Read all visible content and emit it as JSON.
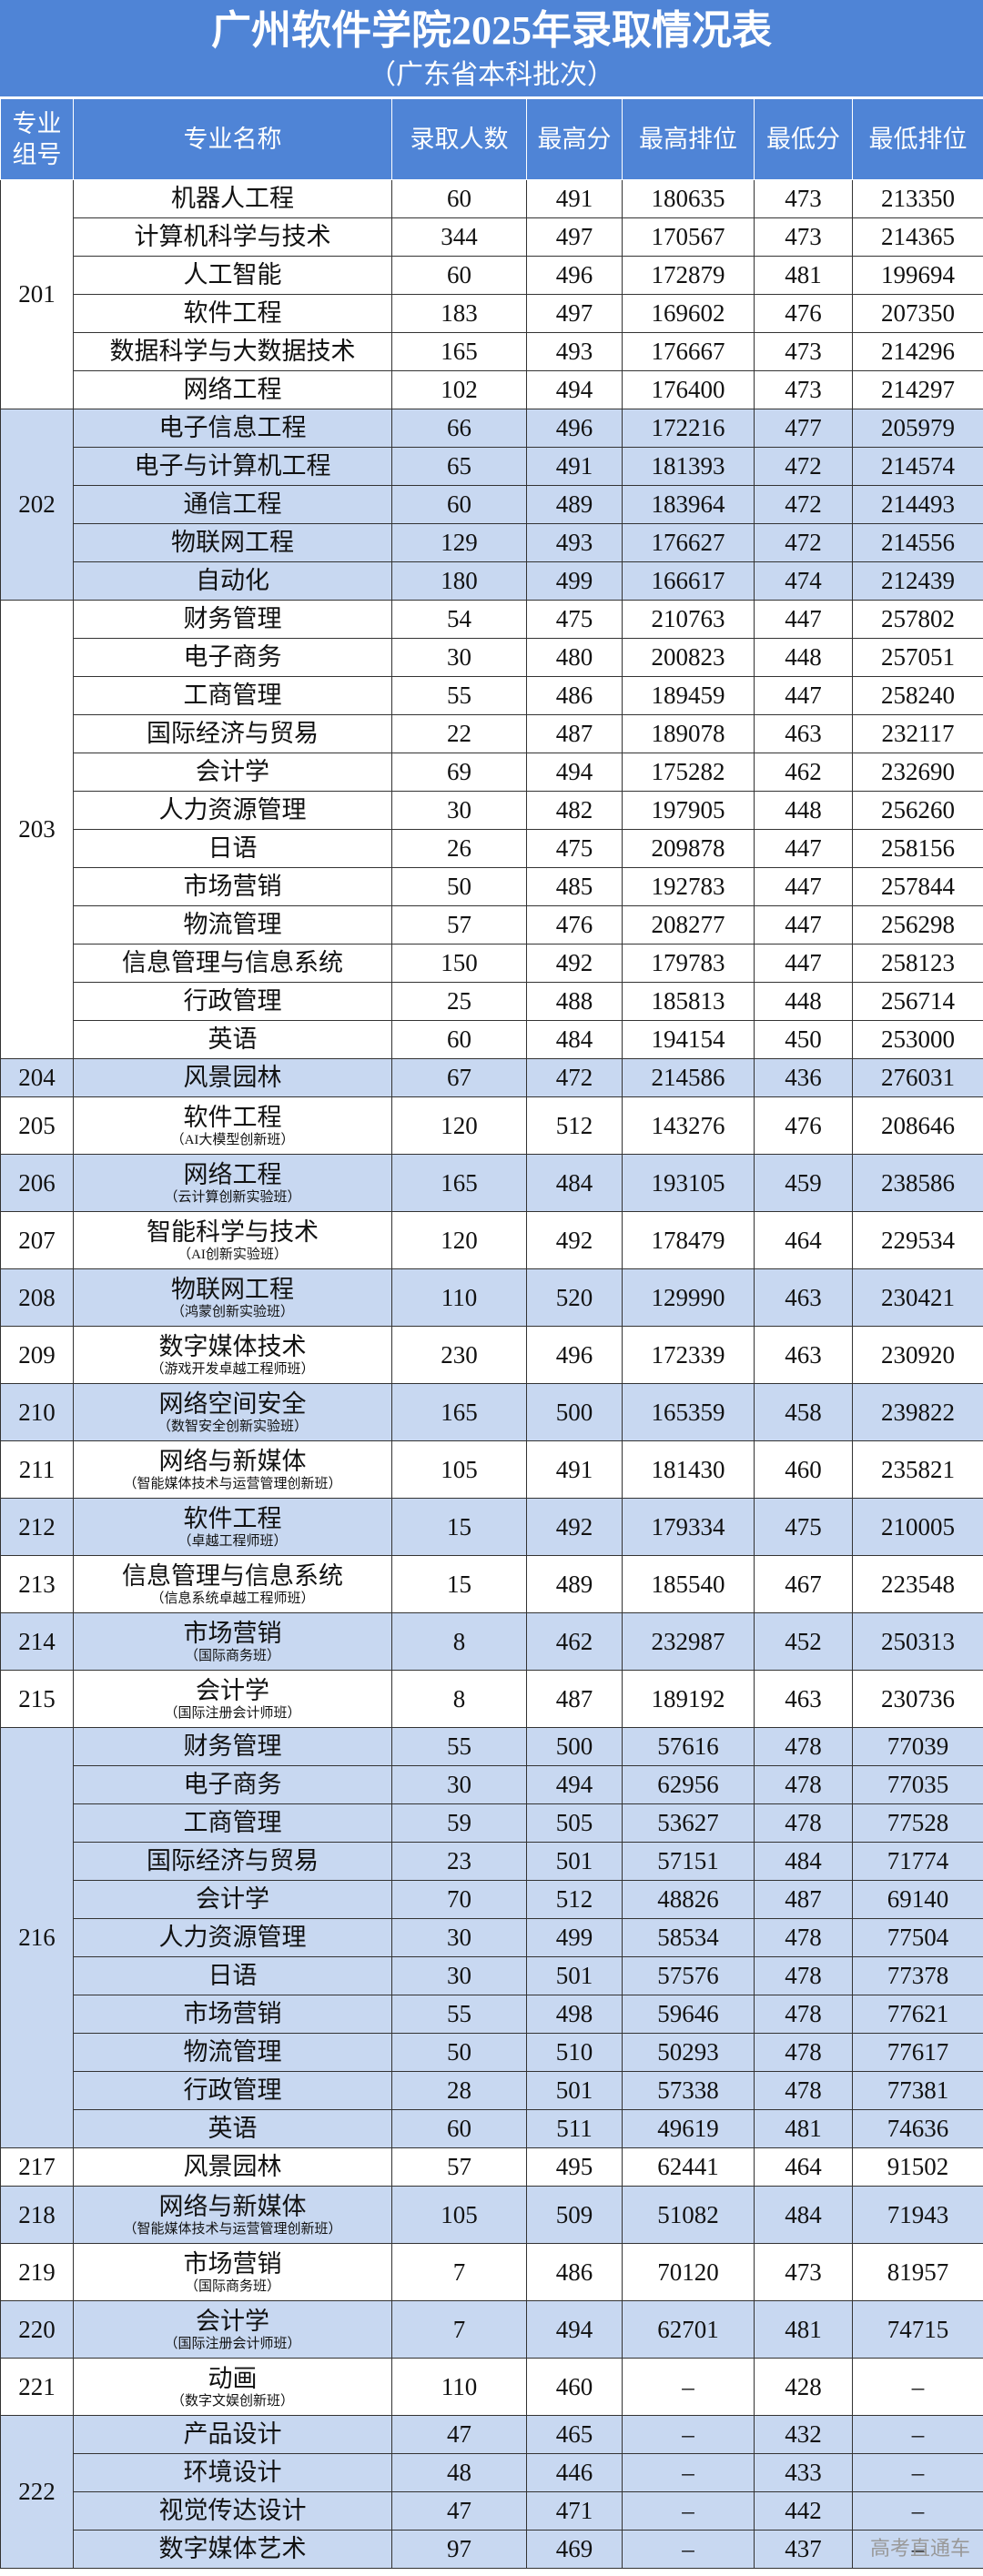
{
  "header": {
    "title": "广州软件学院2025年录取情况表",
    "subtitle": "（广东省本科批次）"
  },
  "table": {
    "columns": [
      "专业组号",
      "专业名称",
      "录取人数",
      "最高分",
      "最高排位",
      "最低分",
      "最低排位"
    ],
    "groups": [
      {
        "code": "201",
        "rows": [
          {
            "name": "机器人工程",
            "cells": [
              60,
              491,
              180635,
              473,
              213350
            ]
          },
          {
            "name": "计算机科学与技术",
            "cells": [
              344,
              497,
              170567,
              473,
              214365
            ]
          },
          {
            "name": "人工智能",
            "cells": [
              60,
              496,
              172879,
              481,
              199694
            ]
          },
          {
            "name": "软件工程",
            "cells": [
              183,
              497,
              169602,
              476,
              207350
            ]
          },
          {
            "name": "数据科学与大数据技术",
            "cells": [
              165,
              493,
              176667,
              473,
              214296
            ]
          },
          {
            "name": "网络工程",
            "cells": [
              102,
              494,
              176400,
              473,
              214297
            ]
          }
        ]
      },
      {
        "code": "202",
        "rows": [
          {
            "name": "电子信息工程",
            "cells": [
              66,
              496,
              172216,
              477,
              205979
            ]
          },
          {
            "name": "电子与计算机工程",
            "cells": [
              65,
              491,
              181393,
              472,
              214574
            ]
          },
          {
            "name": "通信工程",
            "cells": [
              60,
              489,
              183964,
              472,
              214493
            ]
          },
          {
            "name": "物联网工程",
            "cells": [
              129,
              493,
              176627,
              472,
              214556
            ]
          },
          {
            "name": "自动化",
            "cells": [
              180,
              499,
              166617,
              474,
              212439
            ]
          }
        ]
      },
      {
        "code": "203",
        "rows": [
          {
            "name": "财务管理",
            "cells": [
              54,
              475,
              210763,
              447,
              257802
            ]
          },
          {
            "name": "电子商务",
            "cells": [
              30,
              480,
              200823,
              448,
              257051
            ]
          },
          {
            "name": "工商管理",
            "cells": [
              55,
              486,
              189459,
              447,
              258240
            ]
          },
          {
            "name": "国际经济与贸易",
            "cells": [
              22,
              487,
              189078,
              463,
              232117
            ]
          },
          {
            "name": "会计学",
            "cells": [
              69,
              494,
              175282,
              462,
              232690
            ]
          },
          {
            "name": "人力资源管理",
            "cells": [
              30,
              482,
              197905,
              448,
              256260
            ]
          },
          {
            "name": "日语",
            "cells": [
              26,
              475,
              209878,
              447,
              258156
            ]
          },
          {
            "name": "市场营销",
            "cells": [
              50,
              485,
              192783,
              447,
              257844
            ]
          },
          {
            "name": "物流管理",
            "cells": [
              57,
              476,
              208277,
              447,
              256298
            ]
          },
          {
            "name": "信息管理与信息系统",
            "cells": [
              150,
              492,
              179783,
              447,
              258123
            ]
          },
          {
            "name": "行政管理",
            "cells": [
              25,
              488,
              185813,
              448,
              256714
            ]
          },
          {
            "name": "英语",
            "cells": [
              60,
              484,
              194154,
              450,
              253000
            ]
          }
        ]
      },
      {
        "code": "204",
        "rows": [
          {
            "name": "风景园林",
            "cells": [
              67,
              472,
              214586,
              436,
              276031
            ]
          }
        ]
      },
      {
        "code": "205",
        "rows": [
          {
            "name": "软件工程",
            "note": "（AI大模型创新班）",
            "cells": [
              120,
              512,
              143276,
              476,
              208646
            ]
          }
        ]
      },
      {
        "code": "206",
        "rows": [
          {
            "name": "网络工程",
            "note": "（云计算创新实验班）",
            "cells": [
              165,
              484,
              193105,
              459,
              238586
            ]
          }
        ]
      },
      {
        "code": "207",
        "rows": [
          {
            "name": "智能科学与技术",
            "note": "（AI创新实验班）",
            "cells": [
              120,
              492,
              178479,
              464,
              229534
            ]
          }
        ]
      },
      {
        "code": "208",
        "rows": [
          {
            "name": "物联网工程",
            "note": "（鸿蒙创新实验班）",
            "cells": [
              110,
              520,
              129990,
              463,
              230421
            ]
          }
        ]
      },
      {
        "code": "209",
        "rows": [
          {
            "name": "数字媒体技术",
            "note": "（游戏开发卓越工程师班）",
            "cells": [
              230,
              496,
              172339,
              463,
              230920
            ]
          }
        ]
      },
      {
        "code": "210",
        "rows": [
          {
            "name": "网络空间安全",
            "note": "（数智安全创新实验班）",
            "cells": [
              165,
              500,
              165359,
              458,
              239822
            ]
          }
        ]
      },
      {
        "code": "211",
        "rows": [
          {
            "name": "网络与新媒体",
            "note": "（智能媒体技术与运营管理创新班）",
            "cells": [
              105,
              491,
              181430,
              460,
              235821
            ]
          }
        ]
      },
      {
        "code": "212",
        "rows": [
          {
            "name": "软件工程",
            "note": "（卓越工程师班）",
            "cells": [
              15,
              492,
              179334,
              475,
              210005
            ]
          }
        ]
      },
      {
        "code": "213",
        "rows": [
          {
            "name": "信息管理与信息系统",
            "note": "（信息系统卓越工程师班）",
            "cells": [
              15,
              489,
              185540,
              467,
              223548
            ]
          }
        ]
      },
      {
        "code": "214",
        "rows": [
          {
            "name": "市场营销",
            "note": "（国际商务班）",
            "cells": [
              8,
              462,
              232987,
              452,
              250313
            ]
          }
        ]
      },
      {
        "code": "215",
        "rows": [
          {
            "name": "会计学",
            "note": "（国际注册会计师班）",
            "cells": [
              8,
              487,
              189192,
              463,
              230736
            ]
          }
        ]
      },
      {
        "code": "216",
        "rows": [
          {
            "name": "财务管理",
            "cells": [
              55,
              500,
              57616,
              478,
              77039
            ]
          },
          {
            "name": "电子商务",
            "cells": [
              30,
              494,
              62956,
              478,
              77035
            ]
          },
          {
            "name": "工商管理",
            "cells": [
              59,
              505,
              53627,
              478,
              77528
            ]
          },
          {
            "name": "国际经济与贸易",
            "cells": [
              23,
              501,
              57151,
              484,
              71774
            ]
          },
          {
            "name": "会计学",
            "cells": [
              70,
              512,
              48826,
              487,
              69140
            ]
          },
          {
            "name": "人力资源管理",
            "cells": [
              30,
              499,
              58534,
              478,
              77504
            ]
          },
          {
            "name": "日语",
            "cells": [
              30,
              501,
              57576,
              478,
              77378
            ]
          },
          {
            "name": "市场营销",
            "cells": [
              55,
              498,
              59646,
              478,
              77621
            ]
          },
          {
            "name": "物流管理",
            "cells": [
              50,
              510,
              50293,
              478,
              77617
            ]
          },
          {
            "name": "行政管理",
            "cells": [
              28,
              501,
              57338,
              478,
              77381
            ]
          },
          {
            "name": "英语",
            "cells": [
              60,
              511,
              49619,
              481,
              74636
            ]
          }
        ]
      },
      {
        "code": "217",
        "rows": [
          {
            "name": "风景园林",
            "cells": [
              57,
              495,
              62441,
              464,
              91502
            ]
          }
        ]
      },
      {
        "code": "218",
        "rows": [
          {
            "name": "网络与新媒体",
            "note": "（智能媒体技术与运营管理创新班）",
            "cells": [
              105,
              509,
              51082,
              484,
              71943
            ]
          }
        ]
      },
      {
        "code": "219",
        "rows": [
          {
            "name": "市场营销",
            "note": "（国际商务班）",
            "cells": [
              7,
              486,
              70120,
              473,
              81957
            ]
          }
        ]
      },
      {
        "code": "220",
        "rows": [
          {
            "name": "会计学",
            "note": "（国际注册会计师班）",
            "cells": [
              7,
              494,
              62701,
              481,
              74715
            ]
          }
        ]
      },
      {
        "code": "221",
        "rows": [
          {
            "name": "动画",
            "note": "（数字文娱创新班）",
            "cells": [
              110,
              460,
              "–",
              428,
              "–"
            ]
          }
        ]
      },
      {
        "code": "222",
        "rows": [
          {
            "name": "产品设计",
            "cells": [
              47,
              465,
              "–",
              432,
              "–"
            ]
          },
          {
            "name": "环境设计",
            "cells": [
              48,
              446,
              "–",
              433,
              "–"
            ]
          },
          {
            "name": "视觉传达设计",
            "cells": [
              47,
              471,
              "–",
              442,
              "–"
            ]
          },
          {
            "name": "数字媒体艺术",
            "cells": [
              97,
              469,
              "–",
              437,
              "–"
            ]
          }
        ]
      }
    ]
  },
  "watermark": "高考直通车"
}
